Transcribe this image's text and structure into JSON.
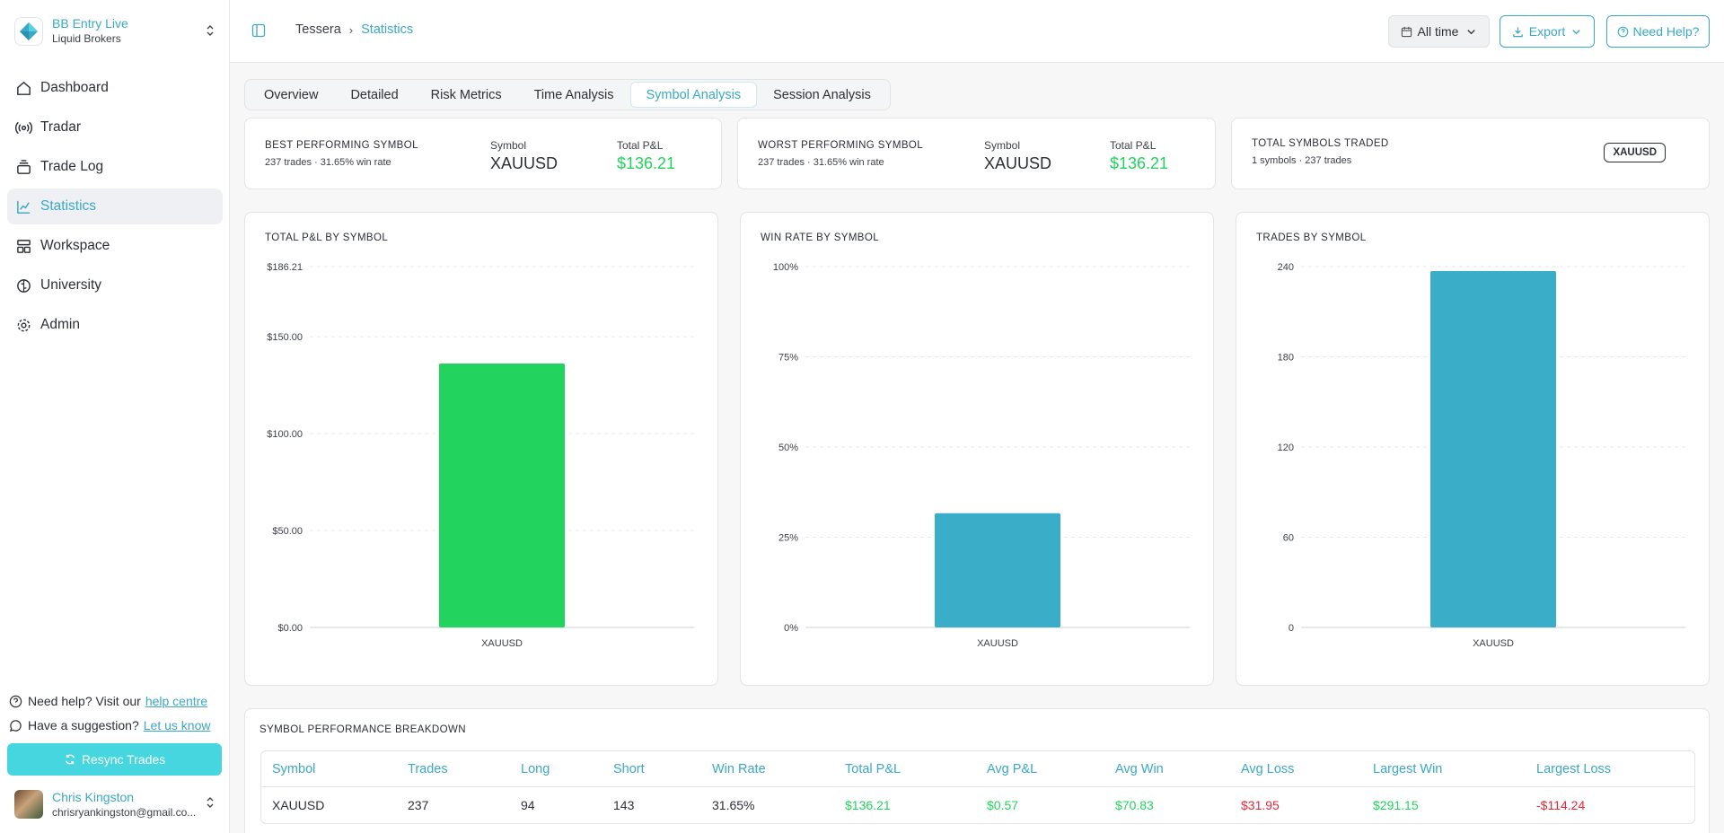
{
  "account": {
    "name": "BB Entry Live",
    "broker": "Liquid Brokers"
  },
  "nav": [
    {
      "label": "Dashboard",
      "icon": "home-icon"
    },
    {
      "label": "Tradar",
      "icon": "radar-icon"
    },
    {
      "label": "Trade Log",
      "icon": "layers-icon"
    },
    {
      "label": "Statistics",
      "icon": "chart-line-icon",
      "active": true
    },
    {
      "label": "Workspace",
      "icon": "layout-icon"
    },
    {
      "label": "University",
      "icon": "brain-icon"
    },
    {
      "label": "Admin",
      "icon": "gear-icon"
    }
  ],
  "footer": {
    "help_text": "Need help? Visit our",
    "help_link": "help centre",
    "suggest_text": "Have a suggestion?",
    "suggest_link": "Let us know",
    "resync_label": "Resync Trades"
  },
  "user": {
    "name": "Chris Kingston",
    "email": "chrisryankingston@gmail.co..."
  },
  "breadcrumb": {
    "root": "Tessera",
    "current": "Statistics"
  },
  "header": {
    "time_label": "All time",
    "export_label": "Export",
    "help_label": "Need Help?"
  },
  "tabs": [
    {
      "label": "Overview"
    },
    {
      "label": "Detailed"
    },
    {
      "label": "Risk Metrics"
    },
    {
      "label": "Time Analysis"
    },
    {
      "label": "Symbol Analysis",
      "active": true
    },
    {
      "label": "Session Analysis"
    }
  ],
  "summary": {
    "best": {
      "label": "BEST PERFORMING SYMBOL",
      "sub": "237 trades · 31.65% win rate",
      "symbol_key": "Symbol",
      "symbol": "XAUUSD",
      "pnl_key": "Total P&L",
      "pnl": "$136.21"
    },
    "worst": {
      "label": "WORST PERFORMING SYMBOL",
      "sub": "237 trades · 31.65% win rate",
      "symbol_key": "Symbol",
      "symbol": "XAUUSD",
      "pnl_key": "Total P&L",
      "pnl": "$136.21"
    },
    "total": {
      "label": "TOTAL SYMBOLS TRADED",
      "sub": "1 symbols · 237 trades",
      "badge": "XAUUSD"
    }
  },
  "colors": {
    "accent": "#3aa8c6",
    "green": "#22d45e",
    "bar_blue": "#3aaec9",
    "red": "#e8283a"
  },
  "chart_data": [
    {
      "type": "bar",
      "title": "TOTAL P&L BY SYMBOL",
      "categories": [
        "XAUUSD"
      ],
      "values": [
        136.21
      ],
      "ylim": [
        0,
        186.21
      ],
      "yticks": [
        0,
        50,
        100,
        150,
        186.21
      ],
      "ytick_labels": [
        "$0.00",
        "$50.00",
        "$100.00",
        "$150.00",
        "$186.21"
      ],
      "color": "#22d45e",
      "grid": true
    },
    {
      "type": "bar",
      "title": "WIN RATE BY SYMBOL",
      "categories": [
        "XAUUSD"
      ],
      "values": [
        31.65
      ],
      "ylim": [
        0,
        100
      ],
      "yticks": [
        0,
        25,
        50,
        75,
        100
      ],
      "ytick_labels": [
        "0%",
        "25%",
        "50%",
        "75%",
        "100%"
      ],
      "color": "#3aaec9",
      "grid": true
    },
    {
      "type": "bar",
      "title": "TRADES BY SYMBOL",
      "categories": [
        "XAUUSD"
      ],
      "values": [
        237
      ],
      "ylim": [
        0,
        240
      ],
      "yticks": [
        0,
        60,
        120,
        180,
        240
      ],
      "ytick_labels": [
        "0",
        "60",
        "120",
        "180",
        "240"
      ],
      "color": "#3aaec9",
      "grid": true
    }
  ],
  "table": {
    "title": "SYMBOL PERFORMANCE BREAKDOWN",
    "columns": [
      "Symbol",
      "Trades",
      "Long",
      "Short",
      "Win Rate",
      "Total P&L",
      "Avg P&L",
      "Avg Win",
      "Avg Loss",
      "Largest Win",
      "Largest Loss"
    ],
    "rows": [
      [
        "XAUUSD",
        "237",
        "94",
        "143",
        "31.65%",
        "$136.21",
        "$0.57",
        "$70.83",
        "$31.95",
        "$291.15",
        "-$114.24"
      ]
    ],
    "cell_classes": [
      "",
      "",
      "",
      "",
      "",
      "pos",
      "pos",
      "pos",
      "neg",
      "pos",
      "neg"
    ]
  }
}
